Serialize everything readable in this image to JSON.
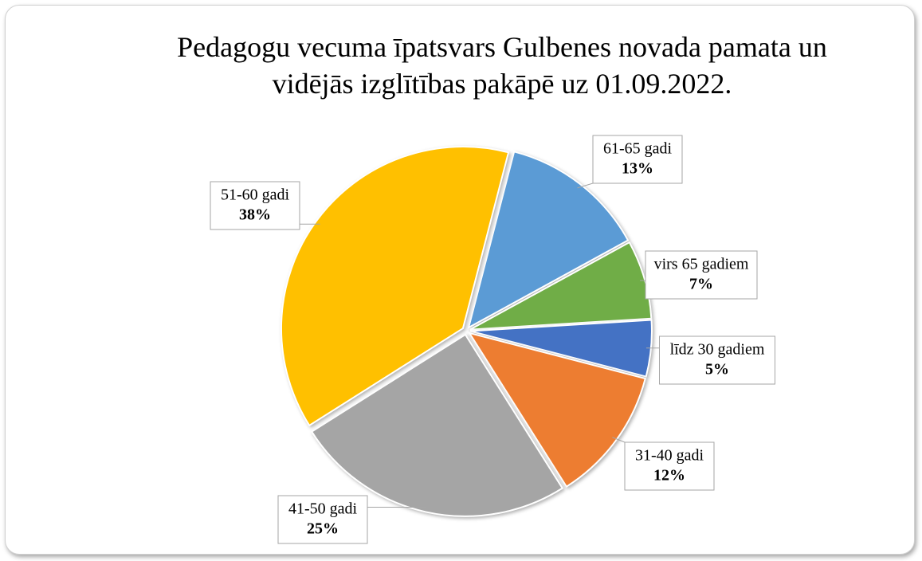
{
  "chart_data": {
    "type": "pie",
    "title": "Pedagogu vecuma īpatsvars Gulbenes novada pamata un vidējās izglītības pakāpē uz 01.09.2022.",
    "categories": [
      "61-65 gadi",
      "virs 65 gadiem",
      "līdz 30 gadiem",
      "31-40 gadi",
      "41-50 gadi",
      "51-60 gadi"
    ],
    "values": [
      13,
      7,
      5,
      12,
      25,
      38
    ],
    "value_labels": [
      "13%",
      "7%",
      "5%",
      "12%",
      "25%",
      "38%"
    ],
    "colors": [
      "#5b9bd5",
      "#70ad47",
      "#4472c4",
      "#ed7d31",
      "#a5a5a5",
      "#ffc000"
    ]
  }
}
